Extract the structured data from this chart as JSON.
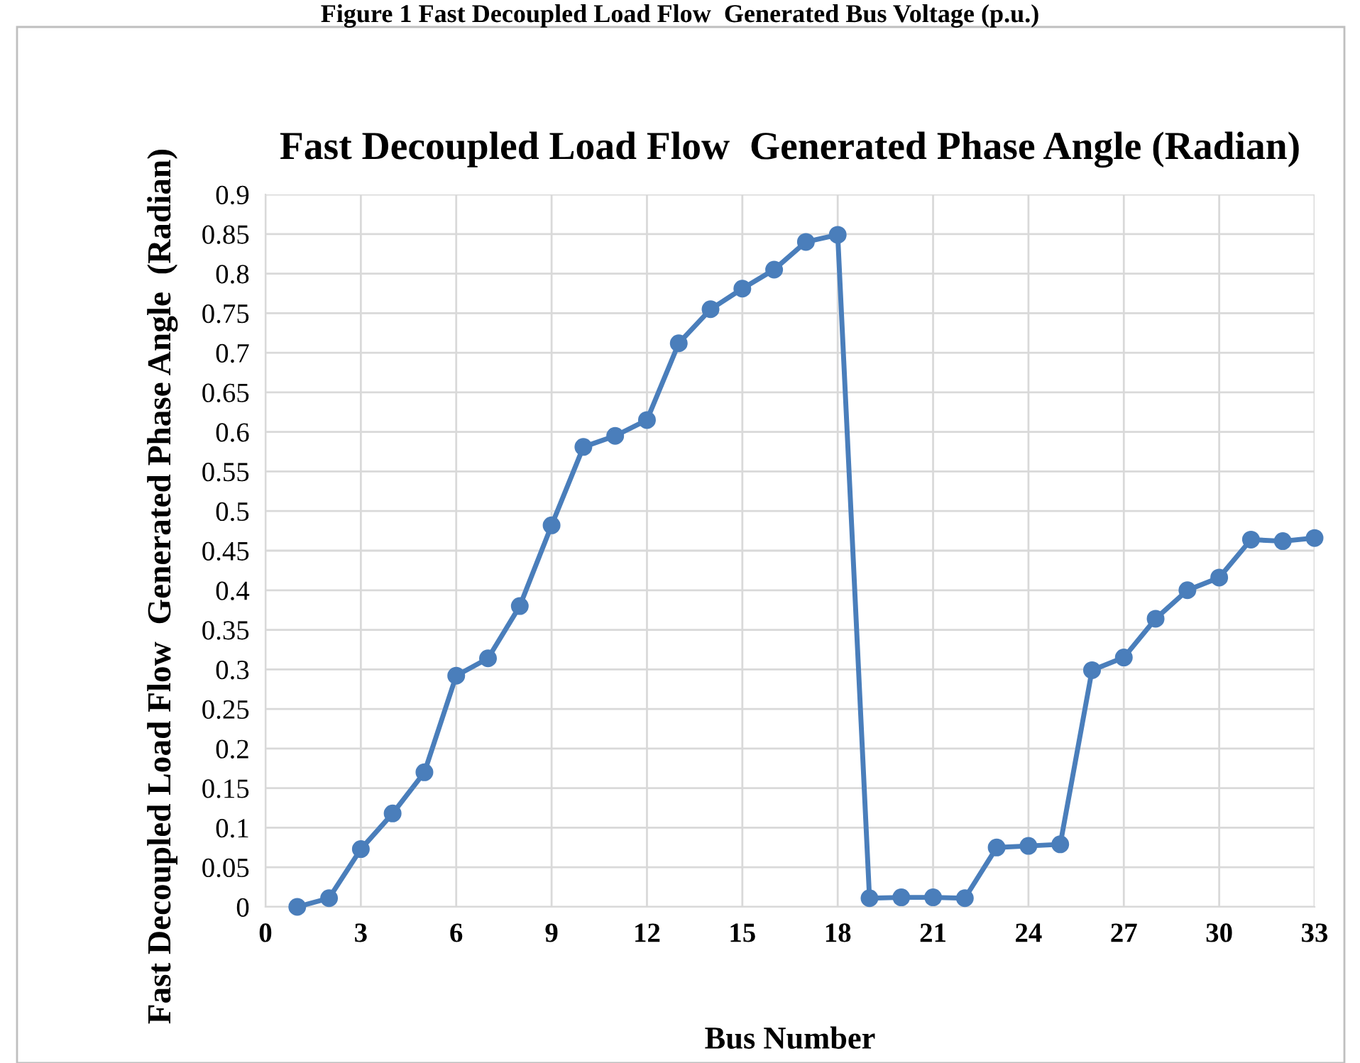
{
  "chart_data": {
    "type": "line",
    "title": "Fast Decoupled Load Flow  Generated Phase Angle (Radian)",
    "xlabel": "Bus Number",
    "ylabel": "Fast Decoupled Load Flow  Generated Phase Angle  (Radian)",
    "annotations": [
      "Figure 1 Fast Decoupled Load Flow  Generated Bus Voltage (p.u.)"
    ],
    "x": [
      1,
      2,
      3,
      4,
      5,
      6,
      7,
      8,
      9,
      10,
      11,
      12,
      13,
      14,
      15,
      16,
      17,
      18,
      19,
      20,
      21,
      22,
      23,
      24,
      25,
      26,
      27,
      28,
      29,
      30,
      31,
      32,
      33
    ],
    "series": [
      {
        "color": "#4a7ebb",
        "values": [
          0.0,
          0.011,
          0.073,
          0.118,
          0.17,
          0.292,
          0.314,
          0.38,
          0.482,
          0.581,
          0.595,
          0.615,
          0.712,
          0.755,
          0.781,
          0.805,
          0.84,
          0.849,
          0.011,
          0.012,
          0.012,
          0.011,
          0.075,
          0.077,
          0.079,
          0.299,
          0.315,
          0.364,
          0.4,
          0.416,
          0.464,
          0.462,
          0.466
        ]
      }
    ],
    "xlim": [
      0,
      33
    ],
    "xticks": [
      0,
      3,
      6,
      9,
      12,
      15,
      18,
      21,
      24,
      27,
      30,
      33
    ],
    "ylim": [
      0,
      0.9
    ],
    "yticks": [
      0,
      0.05,
      0.1,
      0.15,
      0.2,
      0.25,
      0.3,
      0.35,
      0.4,
      0.45,
      0.5,
      0.55,
      0.6,
      0.65,
      0.7,
      0.75,
      0.8,
      0.85,
      0.9
    ],
    "grid": true,
    "marker": "circle",
    "line_style": "solid"
  }
}
